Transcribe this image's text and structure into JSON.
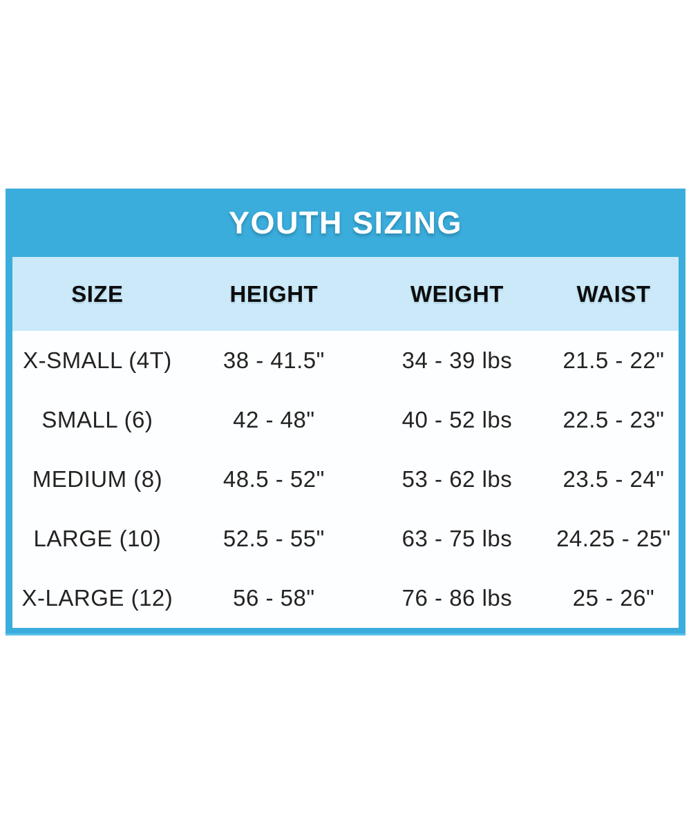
{
  "chart_data": {
    "type": "table",
    "title": "YOUTH SIZING",
    "columns": [
      "SIZE",
      "HEIGHT",
      "WEIGHT",
      "WAIST"
    ],
    "rows": [
      {
        "size": "X-SMALL (4T)",
        "height": "38 - 41.5\"",
        "weight": "34 - 39 lbs",
        "waist": "21.5 - 22\""
      },
      {
        "size": "SMALL (6)",
        "height": "42 - 48\"",
        "weight": "40 - 52 lbs",
        "waist": "22.5 - 23\""
      },
      {
        "size": "MEDIUM (8)",
        "height": "48.5 - 52\"",
        "weight": "53 - 62 lbs",
        "waist": "23.5 - 24\""
      },
      {
        "size": "LARGE (10)",
        "height": "52.5 - 55\"",
        "weight": "63 - 75 lbs",
        "waist": "24.25 - 25\""
      },
      {
        "size": "X-LARGE (12)",
        "height": "56 - 58\"",
        "weight": "76 - 86 lbs",
        "waist": "25 - 26\""
      }
    ],
    "layout": {
      "legend": "none",
      "grid": "off",
      "units": {
        "height": "inches",
        "weight": "lbs",
        "waist": "inches"
      }
    },
    "colors": {
      "banner_blue": "#3BADDC",
      "border_light_blue": "#57BEEA",
      "header_band_blue": "#CBE9F8",
      "body_white": "#FDFEFF",
      "title_text": "#FFFFFF",
      "header_text": "#0D0D0D",
      "cell_text": "#232323"
    }
  }
}
